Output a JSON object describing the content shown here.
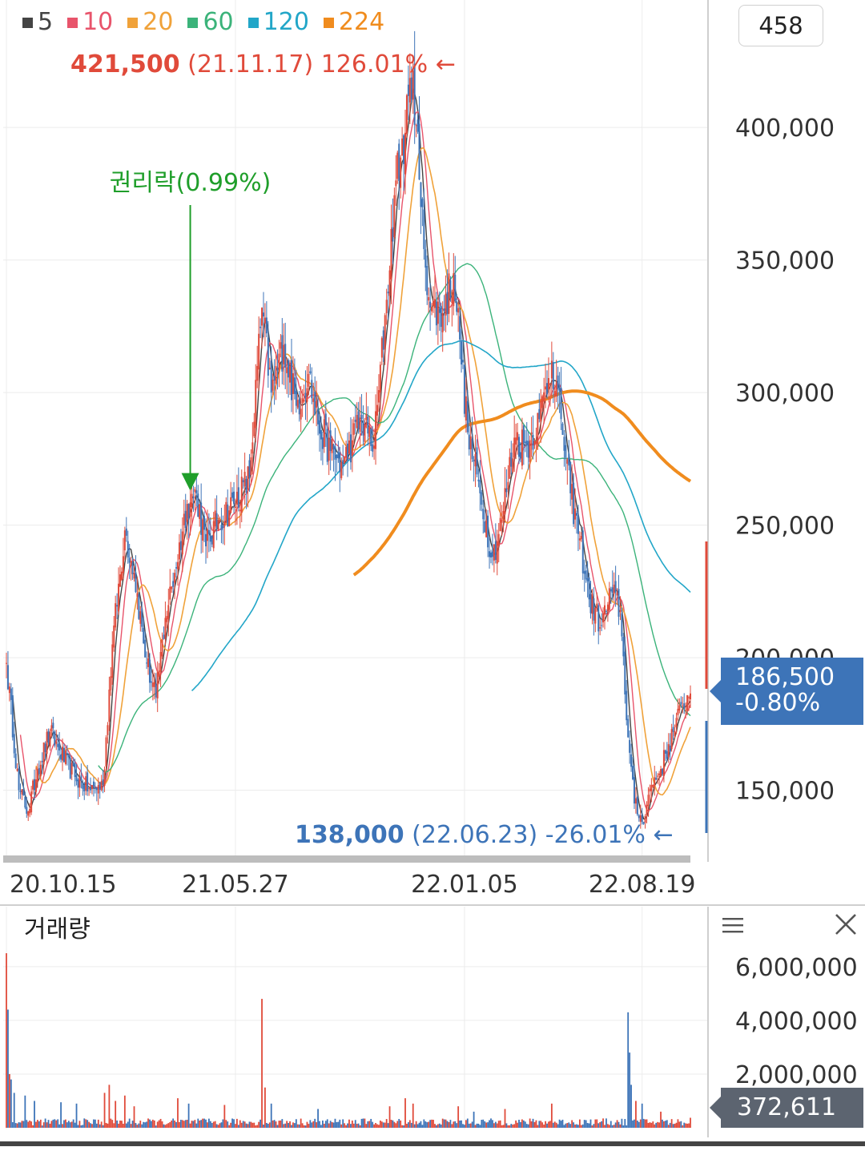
{
  "legend": [
    {
      "label": "5",
      "color": "#444444"
    },
    {
      "label": "10",
      "color": "#e8546b"
    },
    {
      "label": "20",
      "color": "#f0a23a"
    },
    {
      "label": "60",
      "color": "#3bb37a"
    },
    {
      "label": "120",
      "color": "#22a6c8"
    },
    {
      "label": "224",
      "color": "#f08c1e"
    }
  ],
  "count_badge": "458",
  "annotations": {
    "high": {
      "price": "421,500",
      "detail": " (21.11.17) 126.01% ",
      "arrow": "←"
    },
    "low": {
      "price": "138,000",
      "detail": " (22.06.23) -26.01% ",
      "arrow": "←"
    },
    "rights": "권리락(0.99%)"
  },
  "current_price": {
    "value": "186,500",
    "change": "-0.80%"
  },
  "volume_panel": {
    "title": "거래량",
    "current": "372,611"
  },
  "chart_data": [
    {
      "type": "line",
      "panel": "price",
      "x_ticks": [
        {
          "label": "20.10.15",
          "index": 0
        },
        {
          "label": "21.05.27",
          "index": 147
        },
        {
          "label": "22.01.05",
          "index": 294
        },
        {
          "label": "22.08.19",
          "index": 408
        }
      ],
      "y_ticks": [
        {
          "label": "150,000",
          "value": 150000
        },
        {
          "label": "200,000",
          "value": 200000
        },
        {
          "label": "250,000",
          "value": 250000
        },
        {
          "label": "300,000",
          "value": 300000
        },
        {
          "label": "350,000",
          "value": 350000
        },
        {
          "label": "400,000",
          "value": 400000
        }
      ],
      "ylim": [
        126000,
        436000
      ],
      "n_sessions": 440,
      "grid": true,
      "close_series": [
        {
          "i": 0,
          "v": 198000
        },
        {
          "i": 8,
          "v": 150000
        },
        {
          "i": 14,
          "v": 142000
        },
        {
          "i": 20,
          "v": 158000
        },
        {
          "i": 28,
          "v": 172000
        },
        {
          "i": 34,
          "v": 165000
        },
        {
          "i": 44,
          "v": 155000
        },
        {
          "i": 54,
          "v": 150000
        },
        {
          "i": 62,
          "v": 152000
        },
        {
          "i": 68,
          "v": 205000
        },
        {
          "i": 76,
          "v": 248000
        },
        {
          "i": 82,
          "v": 232000
        },
        {
          "i": 90,
          "v": 198000
        },
        {
          "i": 96,
          "v": 185000
        },
        {
          "i": 102,
          "v": 215000
        },
        {
          "i": 108,
          "v": 232000
        },
        {
          "i": 116,
          "v": 258000
        },
        {
          "i": 122,
          "v": 262000
        },
        {
          "i": 128,
          "v": 242000
        },
        {
          "i": 136,
          "v": 252000
        },
        {
          "i": 146,
          "v": 258000
        },
        {
          "i": 156,
          "v": 268000
        },
        {
          "i": 164,
          "v": 332000
        },
        {
          "i": 170,
          "v": 300000
        },
        {
          "i": 178,
          "v": 318000
        },
        {
          "i": 186,
          "v": 295000
        },
        {
          "i": 194,
          "v": 307000
        },
        {
          "i": 200,
          "v": 288000
        },
        {
          "i": 208,
          "v": 278000
        },
        {
          "i": 216,
          "v": 272000
        },
        {
          "i": 222,
          "v": 282000
        },
        {
          "i": 228,
          "v": 290000
        },
        {
          "i": 236,
          "v": 280000
        },
        {
          "i": 244,
          "v": 335000
        },
        {
          "i": 250,
          "v": 380000
        },
        {
          "i": 256,
          "v": 398000
        },
        {
          "i": 261,
          "v": 421500
        },
        {
          "i": 266,
          "v": 370000
        },
        {
          "i": 272,
          "v": 332000
        },
        {
          "i": 280,
          "v": 330000
        },
        {
          "i": 287,
          "v": 345000
        },
        {
          "i": 291,
          "v": 320000
        },
        {
          "i": 296,
          "v": 285000
        },
        {
          "i": 304,
          "v": 262000
        },
        {
          "i": 312,
          "v": 238000
        },
        {
          "i": 318,
          "v": 252000
        },
        {
          "i": 326,
          "v": 283000
        },
        {
          "i": 334,
          "v": 280000
        },
        {
          "i": 342,
          "v": 290000
        },
        {
          "i": 350,
          "v": 312000
        },
        {
          "i": 356,
          "v": 290000
        },
        {
          "i": 362,
          "v": 262000
        },
        {
          "i": 368,
          "v": 245000
        },
        {
          "i": 374,
          "v": 222000
        },
        {
          "i": 382,
          "v": 212000
        },
        {
          "i": 388,
          "v": 225000
        },
        {
          "i": 394,
          "v": 218000
        },
        {
          "i": 399,
          "v": 170000
        },
        {
          "i": 403,
          "v": 145000
        },
        {
          "i": 408,
          "v": 138000
        },
        {
          "i": 414,
          "v": 152000
        },
        {
          "i": 420,
          "v": 158000
        },
        {
          "i": 428,
          "v": 172000
        },
        {
          "i": 434,
          "v": 182000
        },
        {
          "i": 439,
          "v": 186500
        }
      ],
      "ma_periods": [
        5,
        10,
        20,
        60,
        120,
        224
      ],
      "ma_colors": [
        "#444444",
        "#e8546b",
        "#f0a23a",
        "#3bb37a",
        "#22a6c8",
        "#f08c1e"
      ],
      "marked_points": [
        {
          "label": "high",
          "i": 261,
          "v": 421500
        },
        {
          "label": "low",
          "i": 408,
          "v": 138000
        },
        {
          "label": "rights",
          "i": 118,
          "v": 263000
        }
      ]
    },
    {
      "type": "bar",
      "panel": "volume",
      "title": "거래량",
      "y_ticks": [
        {
          "label": "2,000,000",
          "value": 2000000
        },
        {
          "label": "4,000,000",
          "value": 4000000
        },
        {
          "label": "6,000,000",
          "value": 6000000
        }
      ],
      "ylim": [
        0,
        6800000
      ],
      "base_level": 240000,
      "spikes": [
        {
          "i": 0,
          "v": 6500000
        },
        {
          "i": 1,
          "v": 4400000
        },
        {
          "i": 2,
          "v": 2000000
        },
        {
          "i": 3,
          "v": 1800000
        },
        {
          "i": 5,
          "v": 1300000
        },
        {
          "i": 12,
          "v": 1200000
        },
        {
          "i": 18,
          "v": 1000000
        },
        {
          "i": 35,
          "v": 950000
        },
        {
          "i": 45,
          "v": 900000
        },
        {
          "i": 63,
          "v": 1300000
        },
        {
          "i": 66,
          "v": 1600000
        },
        {
          "i": 70,
          "v": 1000000
        },
        {
          "i": 76,
          "v": 1200000
        },
        {
          "i": 82,
          "v": 800000
        },
        {
          "i": 110,
          "v": 1100000
        },
        {
          "i": 117,
          "v": 900000
        },
        {
          "i": 140,
          "v": 850000
        },
        {
          "i": 164,
          "v": 4800000
        },
        {
          "i": 166,
          "v": 1500000
        },
        {
          "i": 170,
          "v": 900000
        },
        {
          "i": 200,
          "v": 700000
        },
        {
          "i": 246,
          "v": 800000
        },
        {
          "i": 256,
          "v": 1100000
        },
        {
          "i": 261,
          "v": 900000
        },
        {
          "i": 290,
          "v": 800000
        },
        {
          "i": 300,
          "v": 600000
        },
        {
          "i": 320,
          "v": 700000
        },
        {
          "i": 350,
          "v": 900000
        },
        {
          "i": 399,
          "v": 4300000
        },
        {
          "i": 400,
          "v": 2800000
        },
        {
          "i": 401,
          "v": 1600000
        },
        {
          "i": 404,
          "v": 1000000
        },
        {
          "i": 408,
          "v": 900000
        },
        {
          "i": 420,
          "v": 600000
        },
        {
          "i": 439,
          "v": 372611
        }
      ]
    }
  ]
}
